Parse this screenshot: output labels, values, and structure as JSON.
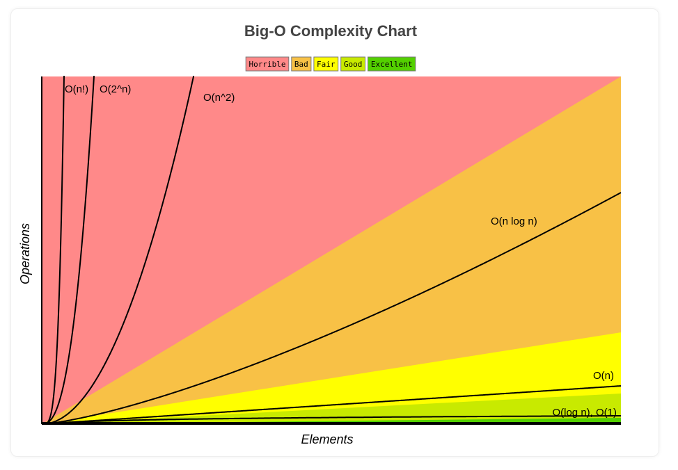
{
  "title": "Big-O Complexity Chart",
  "legend": [
    "Horrible",
    "Bad",
    "Fair",
    "Good",
    "Excellent"
  ],
  "x_label": "Elements",
  "y_label": "Operations",
  "curve_labels": [
    "O(n!)",
    "O(2^n)",
    "O(n^2)",
    "O(n log n)",
    "O(n)",
    "O(log n), O(1)"
  ]
}
